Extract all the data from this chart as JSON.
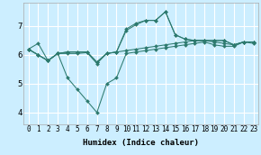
{
  "xlabel": "Humidex (Indice chaleur)",
  "background_color": "#cceeff",
  "grid_color": "#ffffff",
  "line_color": "#2d7a6e",
  "xlim": [
    -0.5,
    23.5
  ],
  "ylim": [
    3.6,
    7.8
  ],
  "yticks": [
    4,
    5,
    6,
    7
  ],
  "xticks": [
    0,
    1,
    2,
    3,
    4,
    5,
    6,
    7,
    8,
    9,
    10,
    11,
    12,
    13,
    14,
    15,
    16,
    17,
    18,
    19,
    20,
    21,
    22,
    23
  ],
  "series": [
    [
      6.2,
      6.4,
      5.8,
      6.05,
      5.2,
      4.8,
      4.4,
      4.0,
      5.0,
      5.2,
      6.05,
      6.1,
      6.15,
      6.2,
      6.25,
      6.3,
      6.35,
      6.4,
      6.45,
      6.35,
      6.3,
      6.3,
      6.45,
      6.4
    ],
    [
      6.2,
      6.0,
      5.8,
      6.05,
      6.05,
      6.05,
      6.08,
      5.7,
      6.05,
      6.1,
      6.15,
      6.2,
      6.25,
      6.3,
      6.35,
      6.4,
      6.45,
      6.5,
      6.5,
      6.45,
      6.4,
      6.35,
      6.45,
      6.45
    ],
    [
      6.2,
      6.0,
      5.8,
      6.05,
      6.1,
      6.1,
      6.1,
      5.75,
      6.05,
      6.1,
      6.9,
      7.1,
      7.2,
      7.2,
      7.5,
      6.7,
      6.55,
      6.5,
      6.5,
      6.5,
      6.5,
      6.35,
      6.45,
      6.45
    ],
    [
      6.2,
      6.0,
      5.8,
      6.05,
      6.1,
      6.1,
      6.1,
      5.75,
      6.05,
      6.1,
      6.85,
      7.05,
      7.2,
      7.2,
      7.5,
      6.7,
      6.55,
      6.5,
      6.5,
      6.5,
      6.5,
      6.35,
      6.45,
      6.45
    ]
  ]
}
